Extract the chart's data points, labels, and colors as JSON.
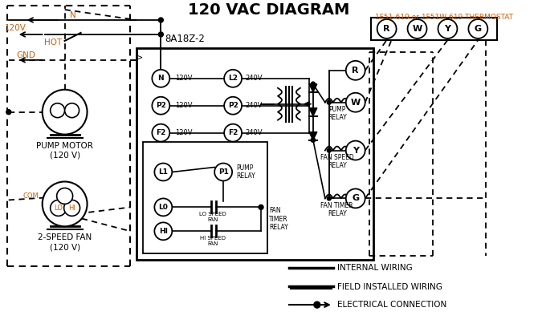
{
  "title": "120 VAC DIAGRAM",
  "thermostat_label": "1F51-619 or 1F51W-619 THERMOSTAT",
  "controller_label": "8A18Z-2",
  "thermostat_terminals": [
    "R",
    "W",
    "Y",
    "G"
  ],
  "bg_color": "#ffffff",
  "black": "#000000",
  "orange": "#c8600a",
  "pump_motor_label": "PUMP MOTOR\n(120 V)",
  "fan_label": "2-SPEED FAN\n(120 V)",
  "legend": [
    {
      "label": "INTERNAL WIRING",
      "style": "solid"
    },
    {
      "label": "FIELD INSTALLED WIRING",
      "style": "thick"
    },
    {
      "label": "ELECTRICAL CONNECTION",
      "style": "dotarrow"
    }
  ]
}
